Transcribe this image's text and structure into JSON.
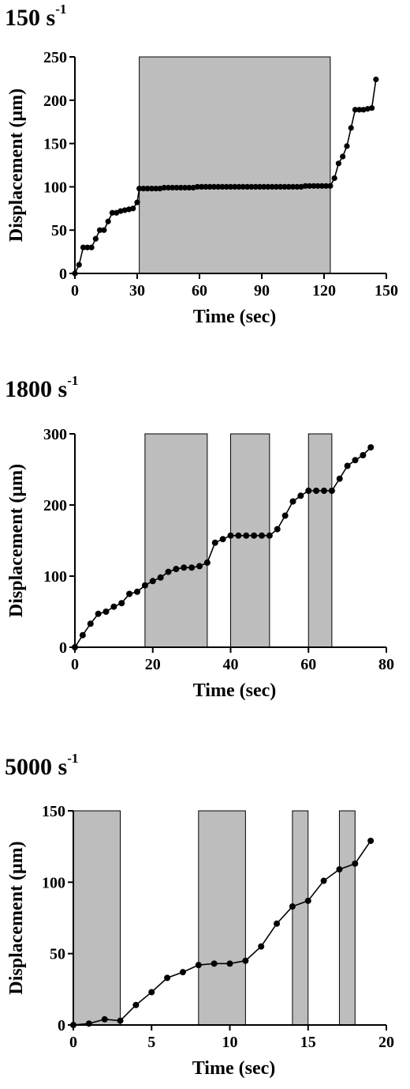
{
  "chart_data": [
    {
      "type": "line",
      "title_num": "150",
      "title_unit": "s",
      "title_exp": "-1",
      "xlabel": "Time (sec)",
      "ylabel": "Displacement (μm)",
      "xlim": [
        0,
        150
      ],
      "ylim": [
        0,
        250
      ],
      "xticks": [
        "0",
        "30",
        "60",
        "90",
        "120",
        "150"
      ],
      "yticks": [
        "0",
        "50",
        "100",
        "150",
        "200",
        "250"
      ],
      "grid": false,
      "shaded_intervals": [
        [
          31,
          123
        ]
      ],
      "series": [
        {
          "x": [
            0,
            2,
            4,
            6,
            8,
            10,
            12,
            14,
            16,
            18,
            20,
            22,
            24,
            26,
            28,
            30,
            31,
            33,
            35,
            37,
            39,
            41,
            43,
            45,
            47,
            49,
            51,
            53,
            55,
            57,
            59,
            61,
            63,
            65,
            67,
            69,
            71,
            73,
            75,
            77,
            79,
            81,
            83,
            85,
            87,
            89,
            91,
            93,
            95,
            97,
            99,
            101,
            103,
            105,
            107,
            109,
            111,
            113,
            115,
            117,
            119,
            121,
            123,
            125,
            127,
            129,
            131,
            133,
            135,
            137,
            139,
            141,
            143,
            145
          ],
          "y": [
            0,
            10,
            30,
            30,
            30,
            40,
            50,
            50,
            60,
            70,
            70,
            72,
            73,
            74,
            75,
            82,
            98,
            98,
            98,
            98,
            98,
            98,
            99,
            99,
            99,
            99,
            99,
            99,
            99,
            99,
            100,
            100,
            100,
            100,
            100,
            100,
            100,
            100,
            100,
            100,
            100,
            100,
            100,
            100,
            100,
            100,
            100,
            100,
            100,
            100,
            100,
            100,
            100,
            100,
            100,
            100,
            101,
            101,
            101,
            101,
            101,
            101,
            101,
            110,
            127,
            135,
            147,
            168,
            189,
            189,
            189,
            190,
            191,
            224
          ]
        }
      ]
    },
    {
      "type": "line",
      "title_num": "1800",
      "title_unit": "s",
      "title_exp": "-1",
      "xlabel": "Time (sec)",
      "ylabel": "Displacement (μm)",
      "xlim": [
        0,
        80
      ],
      "ylim": [
        0,
        300
      ],
      "xticks": [
        "0",
        "20",
        "40",
        "60",
        "80"
      ],
      "yticks": [
        "0",
        "100",
        "200",
        "300"
      ],
      "grid": false,
      "shaded_intervals": [
        [
          18,
          34
        ],
        [
          40,
          50
        ],
        [
          60,
          66
        ]
      ],
      "series": [
        {
          "x": [
            0,
            2,
            4,
            6,
            8,
            10,
            12,
            14,
            16,
            18,
            20,
            22,
            24,
            26,
            28,
            30,
            32,
            34,
            36,
            38,
            40,
            42,
            44,
            46,
            48,
            50,
            52,
            54,
            56,
            58,
            60,
            62,
            64,
            66,
            68,
            70,
            72,
            74,
            76
          ],
          "y": [
            0,
            17,
            33,
            47,
            50,
            57,
            62,
            75,
            78,
            87,
            93,
            98,
            106,
            110,
            112,
            112,
            114,
            119,
            147,
            152,
            157,
            157,
            157,
            157,
            157,
            157,
            166,
            185,
            205,
            213,
            220,
            220,
            220,
            220,
            237,
            255,
            263,
            270,
            281
          ]
        }
      ]
    },
    {
      "type": "line",
      "title_num": "5000",
      "title_unit": "s",
      "title_exp": "-1",
      "xlabel": "Time (sec)",
      "ylabel": "Displacement (μm)",
      "xlim": [
        0,
        20
      ],
      "ylim": [
        0,
        150
      ],
      "xticks": [
        "0",
        "5",
        "10",
        "15",
        "20"
      ],
      "yticks": [
        "0",
        "50",
        "100",
        "150"
      ],
      "grid": false,
      "shaded_intervals": [
        [
          0,
          3
        ],
        [
          8,
          11
        ],
        [
          14,
          15
        ],
        [
          17,
          18
        ]
      ],
      "series": [
        {
          "x": [
            0,
            1,
            2,
            3,
            4,
            5,
            6,
            7,
            8,
            9,
            10,
            11,
            12,
            13,
            14,
            15,
            16,
            17,
            18,
            19
          ],
          "y": [
            0,
            1,
            4,
            3,
            14,
            23,
            33,
            37,
            42,
            43,
            43,
            45,
            55,
            71,
            83,
            87,
            101,
            109,
            113,
            129
          ]
        }
      ]
    }
  ]
}
